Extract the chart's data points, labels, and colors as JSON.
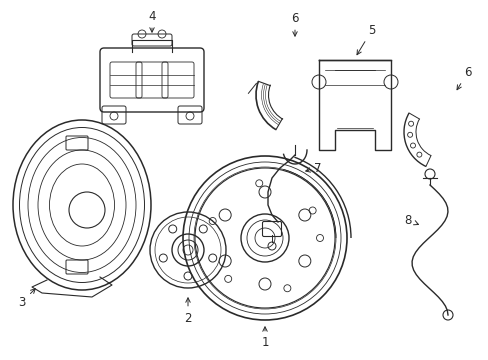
{
  "bg_color": "#ffffff",
  "line_color": "#2a2a2a",
  "lw": 0.9,
  "fig_width": 4.89,
  "fig_height": 3.6,
  "dpi": 100,
  "font_size": 8.5
}
